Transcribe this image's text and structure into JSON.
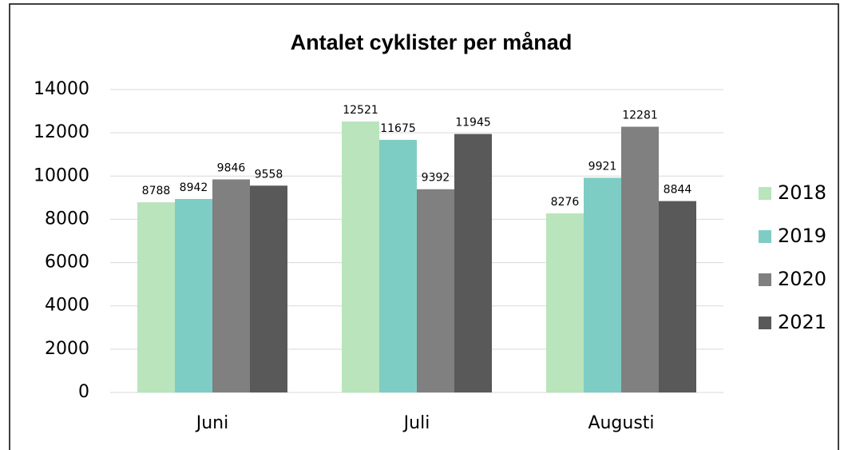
{
  "chart_data": {
    "type": "bar",
    "title": "Antalet cyklister per månad",
    "categories": [
      "Juni",
      "Juli",
      "Augusti"
    ],
    "series": [
      {
        "name": "2018",
        "color": "#b9e4bc",
        "values": [
          8788,
          12521,
          8276
        ]
      },
      {
        "name": "2019",
        "color": "#7ecdc4",
        "values": [
          8942,
          11675,
          9921
        ]
      },
      {
        "name": "2020",
        "color": "#808080",
        "values": [
          9846,
          9392,
          12281
        ]
      },
      {
        "name": "2021",
        "color": "#595959",
        "values": [
          9558,
          11945,
          8844
        ]
      }
    ],
    "ylim": [
      0,
      14000
    ],
    "yticks": [
      0,
      2000,
      4000,
      6000,
      8000,
      10000,
      12000,
      14000
    ],
    "grid": true,
    "legend": "right"
  }
}
